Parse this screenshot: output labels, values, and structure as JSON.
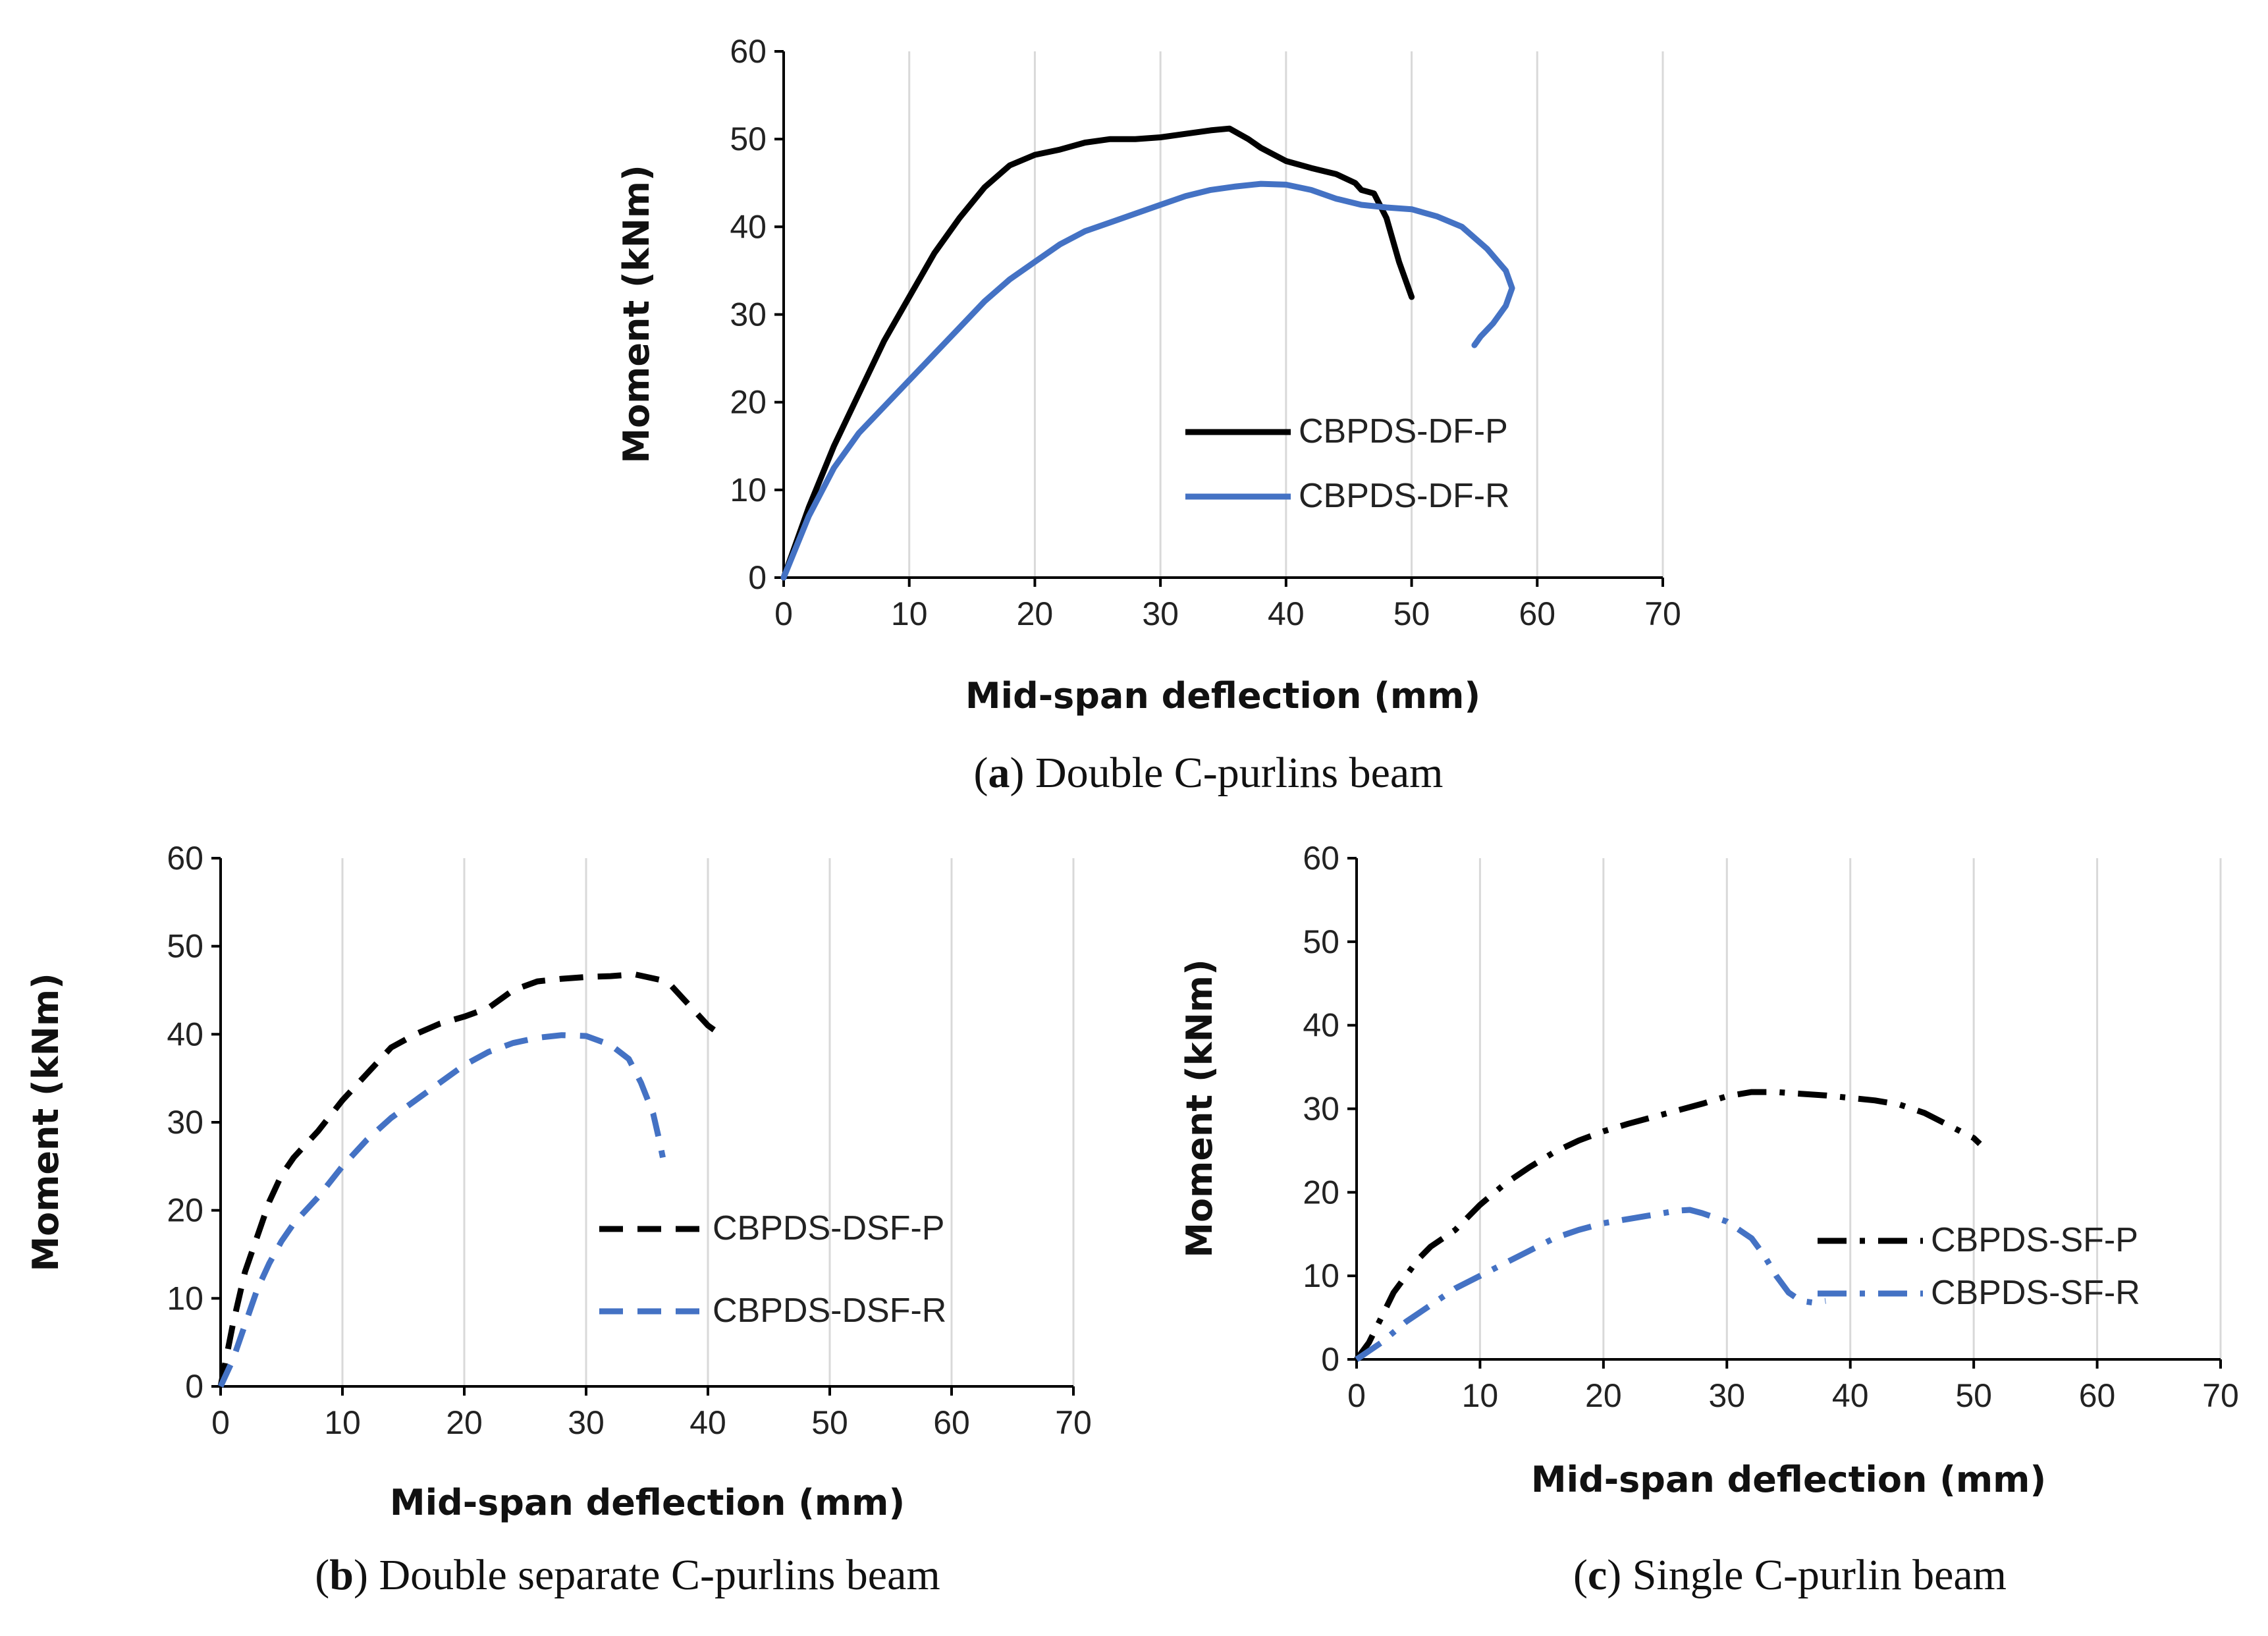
{
  "chart_data": [
    {
      "type": "line",
      "id": "a",
      "caption": {
        "letter": "a",
        "text": "Double C-purlins beam"
      },
      "xlabel": "Mid-span deflection (mm)",
      "ylabel": "Moment (kNm)",
      "xlim": [
        0,
        70
      ],
      "ylim": [
        0,
        60
      ],
      "xticks": [
        0,
        10,
        20,
        30,
        40,
        50,
        60,
        70
      ],
      "yticks": [
        0,
        10,
        20,
        30,
        40,
        50,
        60
      ],
      "grid": "vertical",
      "legend_position": "center-right",
      "series": [
        {
          "name": "CBPDS-DF-P",
          "color": "#000000",
          "dash": "solid",
          "points": [
            [
              0,
              0
            ],
            [
              2,
              8
            ],
            [
              4,
              15
            ],
            [
              6,
              21
            ],
            [
              8,
              27
            ],
            [
              10,
              32
            ],
            [
              12,
              37
            ],
            [
              14,
              41
            ],
            [
              16,
              44.5
            ],
            [
              18,
              47
            ],
            [
              20,
              48.2
            ],
            [
              22,
              48.8
            ],
            [
              24,
              49.6
            ],
            [
              26,
              50
            ],
            [
              28,
              50
            ],
            [
              30,
              50.2
            ],
            [
              32,
              50.6
            ],
            [
              34,
              51
            ],
            [
              35.5,
              51.2
            ],
            [
              37,
              50
            ],
            [
              38,
              49
            ],
            [
              40,
              47.5
            ],
            [
              42,
              46.7
            ],
            [
              44,
              46
            ],
            [
              45.5,
              45
            ],
            [
              46,
              44.2
            ],
            [
              47,
              43.8
            ],
            [
              48,
              41
            ],
            [
              49,
              36
            ],
            [
              50,
              32
            ]
          ]
        },
        {
          "name": "CBPDS-DF-R",
          "color": "#4472c4",
          "dash": "solid",
          "points": [
            [
              0,
              0
            ],
            [
              2,
              7
            ],
            [
              4,
              12.5
            ],
            [
              6,
              16.5
            ],
            [
              8,
              19.5
            ],
            [
              10,
              22.5
            ],
            [
              12,
              25.5
            ],
            [
              14,
              28.5
            ],
            [
              16,
              31.5
            ],
            [
              18,
              34
            ],
            [
              20,
              36
            ],
            [
              22,
              38
            ],
            [
              24,
              39.5
            ],
            [
              26,
              40.5
            ],
            [
              28,
              41.5
            ],
            [
              30,
              42.5
            ],
            [
              32,
              43.5
            ],
            [
              34,
              44.2
            ],
            [
              36,
              44.6
            ],
            [
              38,
              44.9
            ],
            [
              40,
              44.8
            ],
            [
              42,
              44.2
            ],
            [
              44,
              43.2
            ],
            [
              46,
              42.5
            ],
            [
              48,
              42.2
            ],
            [
              50,
              42
            ],
            [
              52,
              41.2
            ],
            [
              54,
              40
            ],
            [
              56,
              37.5
            ],
            [
              57.5,
              35
            ],
            [
              58,
              33
            ],
            [
              57.5,
              31
            ],
            [
              56.5,
              29
            ],
            [
              55.5,
              27.5
            ],
            [
              55,
              26.5
            ]
          ]
        }
      ]
    },
    {
      "type": "line",
      "id": "b",
      "caption": {
        "letter": "b",
        "text": "Double separate C-purlins beam"
      },
      "xlabel": "Mid-span deflection (mm)",
      "ylabel": "Moment (kNm)",
      "xlim": [
        0,
        70
      ],
      "ylim": [
        0,
        60
      ],
      "xticks": [
        0,
        10,
        20,
        30,
        40,
        50,
        60,
        70
      ],
      "yticks": [
        0,
        10,
        20,
        30,
        40,
        50,
        60
      ],
      "grid": "vertical",
      "legend_position": "center-right",
      "series": [
        {
          "name": "CBPDS-DSF-P",
          "color": "#000000",
          "dash": "dashed",
          "points": [
            [
              0,
              0
            ],
            [
              1,
              7
            ],
            [
              2,
              13
            ],
            [
              3,
              17
            ],
            [
              4,
              21
            ],
            [
              5,
              24
            ],
            [
              6,
              26
            ],
            [
              8,
              29
            ],
            [
              10,
              32.5
            ],
            [
              12,
              35.5
            ],
            [
              14,
              38.5
            ],
            [
              16,
              40
            ],
            [
              18,
              41.2
            ],
            [
              20,
              42
            ],
            [
              22,
              43
            ],
            [
              24,
              45
            ],
            [
              26,
              46
            ],
            [
              28,
              46.3
            ],
            [
              30,
              46.5
            ],
            [
              32,
              46.6
            ],
            [
              34,
              46.8
            ],
            [
              36,
              46.2
            ],
            [
              37,
              45.5
            ],
            [
              38,
              44
            ],
            [
              39,
              42.5
            ],
            [
              40,
              41
            ],
            [
              40.5,
              40.5
            ]
          ]
        },
        {
          "name": "CBPDS-DSF-R",
          "color": "#4472c4",
          "dash": "dashed",
          "points": [
            [
              0,
              0
            ],
            [
              1,
              3
            ],
            [
              2,
              7
            ],
            [
              3,
              11
            ],
            [
              4,
              14
            ],
            [
              5,
              16.5
            ],
            [
              6,
              18.5
            ],
            [
              8,
              21.5
            ],
            [
              10,
              25
            ],
            [
              12,
              28
            ],
            [
              14,
              30.5
            ],
            [
              16,
              32.5
            ],
            [
              18,
              34.5
            ],
            [
              20,
              36.5
            ],
            [
              22,
              38
            ],
            [
              24,
              39
            ],
            [
              26,
              39.6
            ],
            [
              28,
              39.9
            ],
            [
              30,
              39.8
            ],
            [
              32,
              38.8
            ],
            [
              33.5,
              37.2
            ],
            [
              34.5,
              34.5
            ],
            [
              35.5,
              31
            ],
            [
              36,
              28
            ],
            [
              36.3,
              26
            ]
          ]
        }
      ]
    },
    {
      "type": "line",
      "id": "c",
      "caption": {
        "letter": "c",
        "text": "Single C-purlin beam"
      },
      "xlabel": "Mid-span deflection (mm)",
      "ylabel": "Moment (kNm)",
      "xlim": [
        0,
        70
      ],
      "ylim": [
        0,
        60
      ],
      "xticks": [
        0,
        10,
        20,
        30,
        40,
        50,
        60,
        70
      ],
      "yticks": [
        0,
        10,
        20,
        30,
        40,
        50,
        60
      ],
      "grid": "vertical",
      "legend_position": "bottom-right",
      "series": [
        {
          "name": "CBPDS-SF-P",
          "color": "#000000",
          "dash": "dashdot",
          "points": [
            [
              0,
              0
            ],
            [
              1,
              2
            ],
            [
              2,
              5
            ],
            [
              3,
              8
            ],
            [
              4,
              10
            ],
            [
              5,
              12
            ],
            [
              6,
              13.5
            ],
            [
              8,
              15.5
            ],
            [
              10,
              18.5
            ],
            [
              12,
              21
            ],
            [
              14,
              23
            ],
            [
              16,
              24.8
            ],
            [
              18,
              26.2
            ],
            [
              20,
              27.3
            ],
            [
              22,
              28.2
            ],
            [
              24,
              29
            ],
            [
              26,
              29.8
            ],
            [
              28,
              30.6
            ],
            [
              30,
              31.5
            ],
            [
              32,
              32
            ],
            [
              34,
              32
            ],
            [
              36,
              31.8
            ],
            [
              38,
              31.6
            ],
            [
              40,
              31.3
            ],
            [
              42,
              31
            ],
            [
              44,
              30.5
            ],
            [
              46,
              29.5
            ],
            [
              48,
              28
            ],
            [
              50,
              26.5
            ],
            [
              50.5,
              25.8
            ]
          ]
        },
        {
          "name": "CBPDS-SF-R",
          "color": "#4472c4",
          "dash": "dashdot",
          "points": [
            [
              0,
              0
            ],
            [
              2,
              2
            ],
            [
              4,
              4.5
            ],
            [
              6,
              6.5
            ],
            [
              8,
              8.5
            ],
            [
              10,
              10
            ],
            [
              12,
              11.5
            ],
            [
              14,
              13
            ],
            [
              16,
              14.5
            ],
            [
              18,
              15.5
            ],
            [
              20,
              16.3
            ],
            [
              22,
              16.8
            ],
            [
              24,
              17.3
            ],
            [
              26,
              17.8
            ],
            [
              27,
              17.9
            ],
            [
              28,
              17.5
            ],
            [
              30,
              16.5
            ],
            [
              32,
              14.5
            ],
            [
              33,
              12.5
            ],
            [
              34,
              10
            ],
            [
              35,
              8
            ],
            [
              36,
              7
            ],
            [
              37,
              6.8
            ],
            [
              38,
              7
            ]
          ]
        }
      ]
    }
  ]
}
